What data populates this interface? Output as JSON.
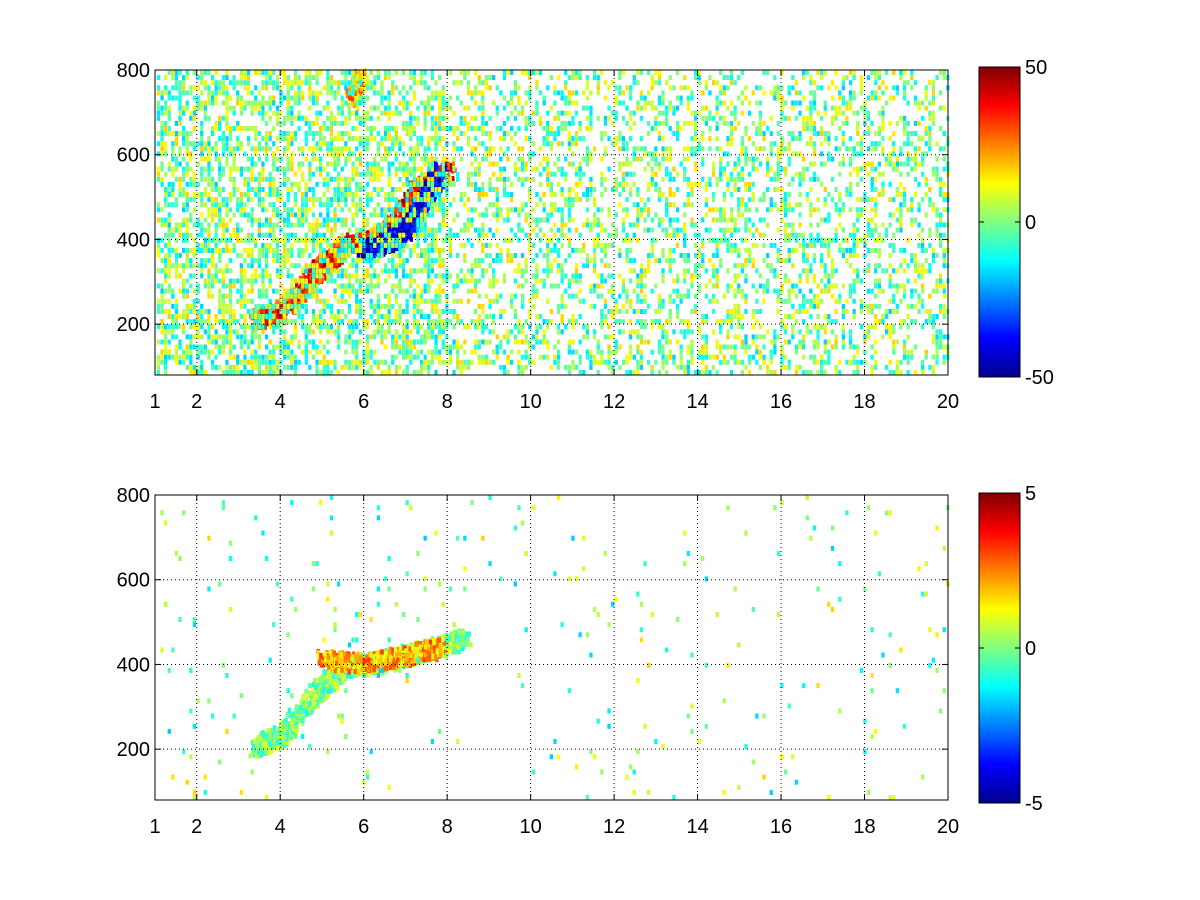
{
  "chart_data": [
    {
      "type": "heatmap",
      "title": "",
      "xlabel": "",
      "ylabel": "",
      "xlim": [
        1,
        20
      ],
      "ylim": [
        80,
        800
      ],
      "grid": true,
      "colormap": "jet",
      "colorbar": {
        "range": [
          -50,
          50
        ],
        "ticks": [
          50,
          0,
          -50
        ],
        "tick_labels": [
          "50",
          "0",
          "-50"
        ]
      },
      "xticks": [
        1,
        2,
        4,
        6,
        8,
        10,
        12,
        14,
        16,
        18,
        20
      ],
      "xtick_labels": [
        "1",
        "2",
        "4",
        "6",
        "8",
        "10",
        "12",
        "14",
        "16",
        "18",
        "20"
      ],
      "yticks": [
        200,
        400,
        600,
        800
      ],
      "ytick_labels": [
        "200",
        "400",
        "600",
        "800"
      ],
      "features": [
        {
          "x": [
            3.4,
            4.0,
            4.8,
            5.5,
            6.2,
            6.8,
            7.3,
            8.0
          ],
          "y": [
            205,
            230,
            320,
            385,
            400,
            440,
            520,
            560
          ],
          "value": 35
        },
        {
          "x": [
            6.0,
            6.6,
            7.0,
            7.4,
            7.8
          ],
          "y": [
            370,
            395,
            420,
            490,
            560
          ],
          "value": -40
        },
        {
          "x": [
            5.7,
            5.9
          ],
          "y": [
            730,
            790
          ],
          "value": 20
        }
      ]
    },
    {
      "type": "heatmap",
      "title": "",
      "xlabel": "",
      "ylabel": "",
      "xlim": [
        1,
        20
      ],
      "ylim": [
        80,
        800
      ],
      "grid": true,
      "colormap": "jet",
      "colorbar": {
        "range": [
          -5,
          5
        ],
        "ticks": [
          5,
          0,
          -5
        ],
        "tick_labels": [
          "5",
          "0",
          "-5"
        ]
      },
      "xticks": [
        1,
        2,
        4,
        6,
        8,
        10,
        12,
        14,
        16,
        18,
        20
      ],
      "xtick_labels": [
        "1",
        "2",
        "4",
        "6",
        "8",
        "10",
        "12",
        "14",
        "16",
        "18",
        "20"
      ],
      "yticks": [
        200,
        400,
        600,
        800
      ],
      "ytick_labels": [
        "200",
        "400",
        "600",
        "800"
      ],
      "features": [
        {
          "x": [
            3.4,
            4.0,
            4.8,
            5.5,
            6.2,
            7.0,
            7.8,
            8.4
          ],
          "y": [
            205,
            230,
            330,
            390,
            400,
            420,
            440,
            460
          ],
          "value": 0
        },
        {
          "x": [
            5.0,
            6.0,
            7.0,
            7.8
          ],
          "y": [
            410,
            400,
            420,
            440
          ],
          "value": 2
        }
      ]
    }
  ]
}
